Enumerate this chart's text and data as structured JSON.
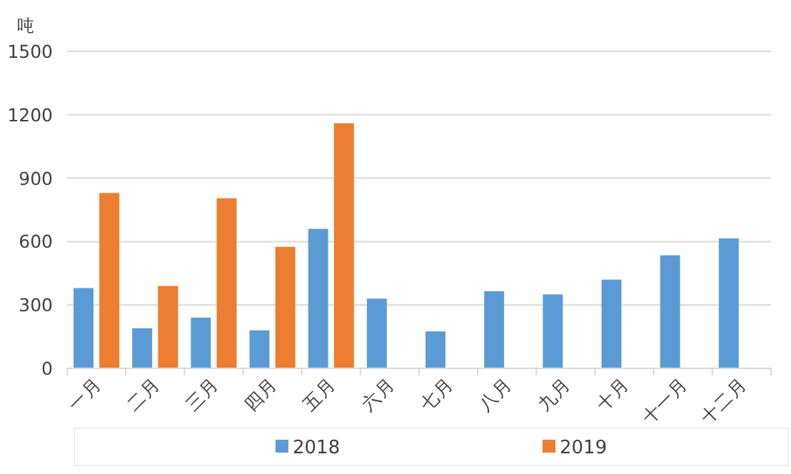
{
  "chart_data": {
    "type": "bar",
    "ylabel": "吨",
    "categories": [
      "一月",
      "二月",
      "三月",
      "四月",
      "五月",
      "六月",
      "七月",
      "八月",
      "九月",
      "十月",
      "十一月",
      "十二月"
    ],
    "series": [
      {
        "name": "2018",
        "color": "#5b9bd5",
        "values": [
          380,
          190,
          240,
          180,
          660,
          330,
          175,
          365,
          350,
          420,
          535,
          615
        ]
      },
      {
        "name": "2019",
        "color": "#ed7d31",
        "values": [
          830,
          390,
          805,
          575,
          1160,
          null,
          null,
          null,
          null,
          null,
          null,
          null
        ]
      }
    ],
    "ylim": [
      0,
      1500
    ],
    "yticks": [
      0,
      300,
      600,
      900,
      1200,
      1500
    ],
    "grid": "y",
    "legend": "bottom"
  }
}
